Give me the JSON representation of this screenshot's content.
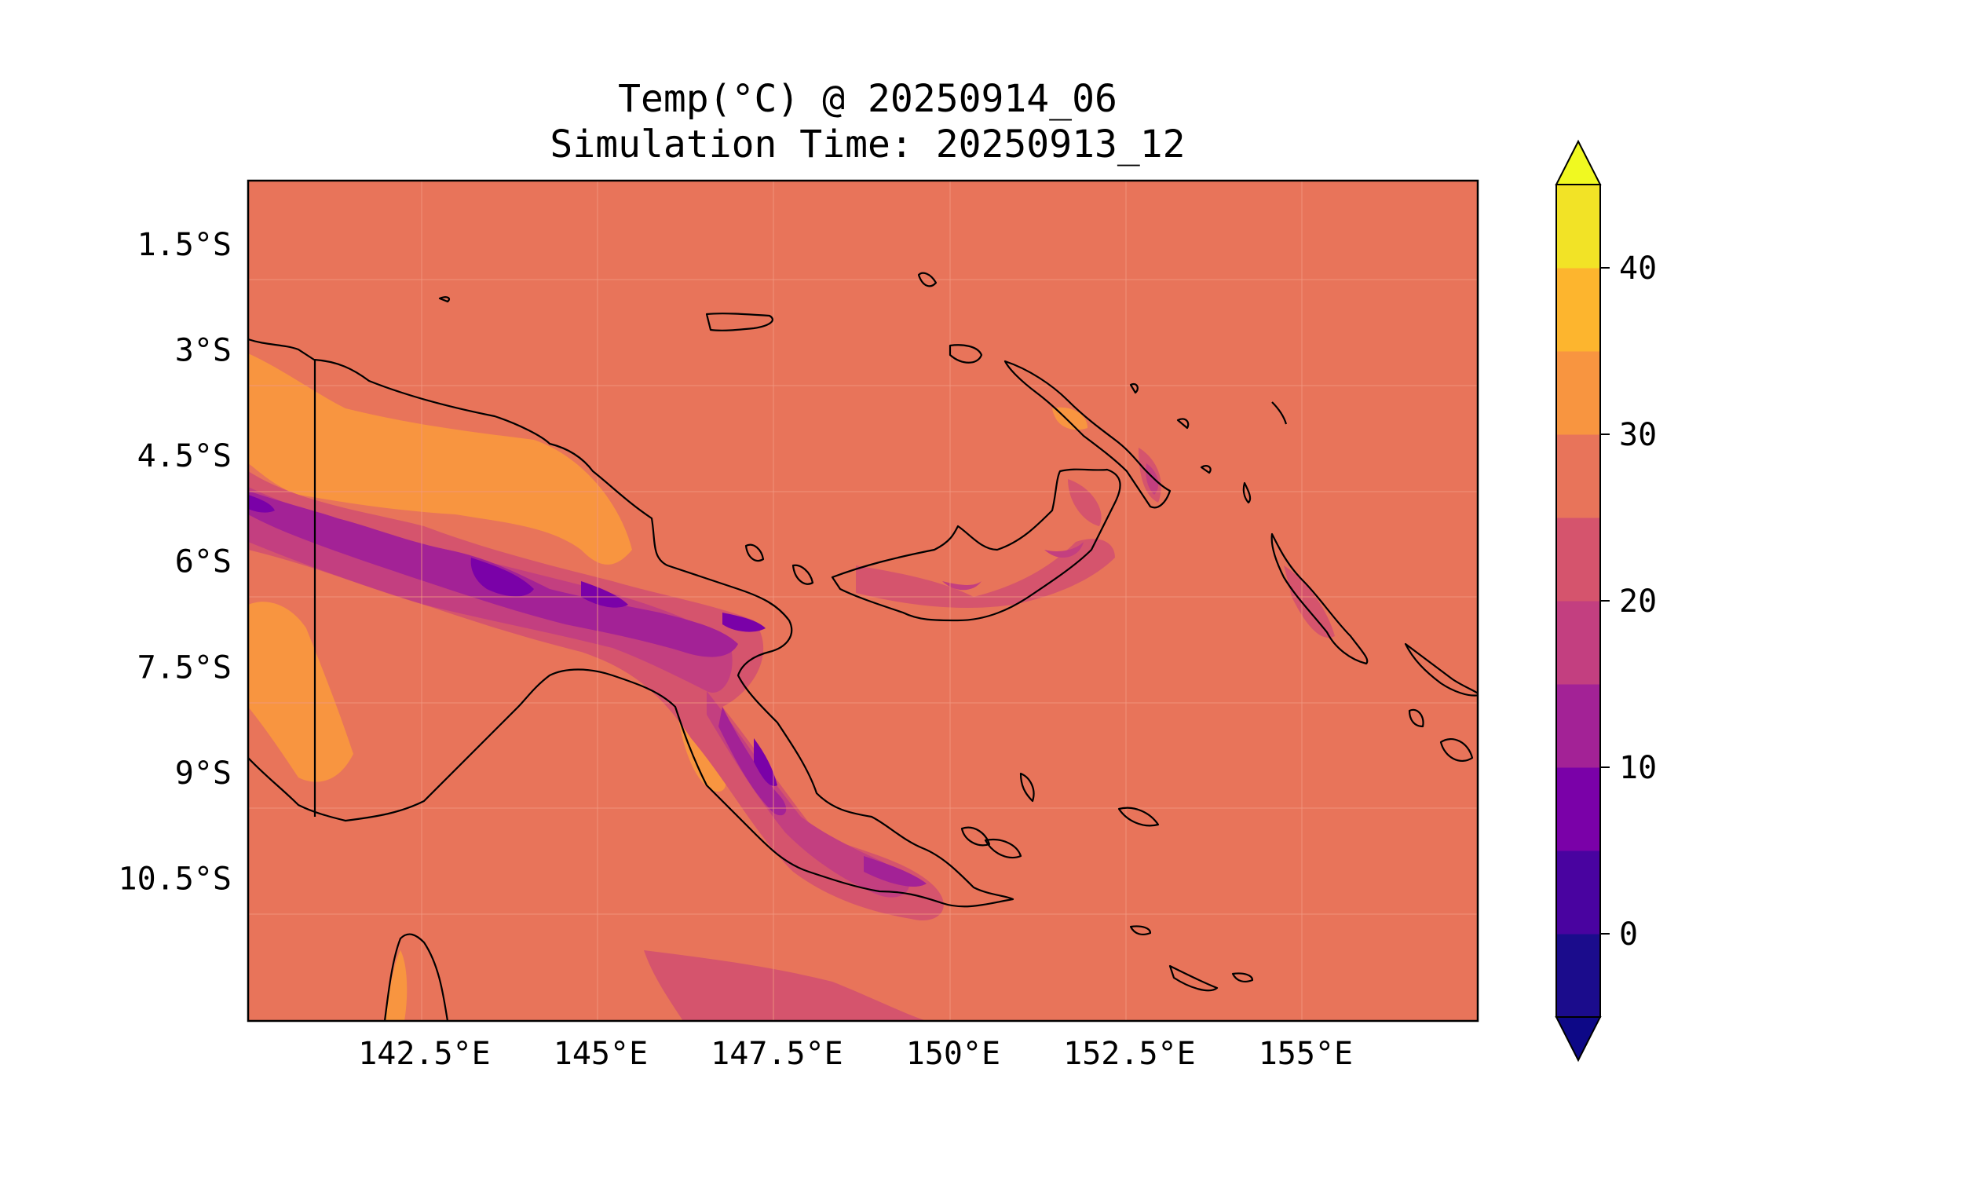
{
  "title": {
    "line1": "Temp(°C) @ 20250914_06",
    "line2": "Simulation Time: 20250913_12"
  },
  "map": {
    "variable": "Temp(°C)",
    "lon_ticks": [
      {
        "value": 142.5,
        "label": "142.5°E"
      },
      {
        "value": 145,
        "label": "145°E"
      },
      {
        "value": 147.5,
        "label": "147.5°E"
      },
      {
        "value": 150,
        "label": "150°E"
      },
      {
        "value": 152.5,
        "label": "152.5°E"
      },
      {
        "value": 155,
        "label": "155°E"
      }
    ],
    "lat_ticks": [
      {
        "value": -1.5,
        "label": "1.5°S"
      },
      {
        "value": -3,
        "label": "3°S"
      },
      {
        "value": -4.5,
        "label": "4.5°S"
      },
      {
        "value": -6,
        "label": "6°S"
      },
      {
        "value": -7.5,
        "label": "7.5°S"
      },
      {
        "value": -9,
        "label": "9°S"
      },
      {
        "value": -10.5,
        "label": "10.5°S"
      }
    ],
    "background_color": "#e8745a"
  },
  "colorbar": {
    "levels": [
      -5,
      0,
      5,
      10,
      15,
      20,
      25,
      30,
      35,
      40,
      45
    ],
    "colors": [
      "#1b0c8c",
      "#4903a0",
      "#7a01a8",
      "#a32296",
      "#c33f80",
      "#d5546d",
      "#e8745a",
      "#f89540",
      "#fdb52e",
      "#f2e326"
    ],
    "under_color": "#0d0887",
    "over_color": "#f0f921",
    "tick_labels": [
      {
        "value": 0,
        "label": "0"
      },
      {
        "value": 10,
        "label": "10"
      },
      {
        "value": 20,
        "label": "20"
      },
      {
        "value": 30,
        "label": "30"
      },
      {
        "value": 40,
        "label": "40"
      }
    ]
  }
}
